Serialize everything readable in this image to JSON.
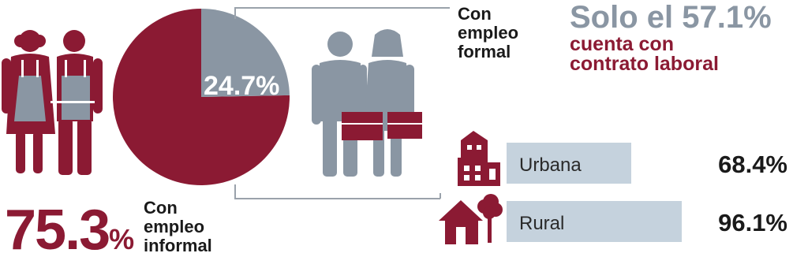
{
  "colors": {
    "informal": "#8b1a33",
    "formal": "#8a96a3",
    "bar": "#c5d2dd",
    "connector": "#9aa2ab"
  },
  "icons": {
    "left": "man-woman-with-aprons-icon",
    "right": "man-woman-with-briefcases-icon",
    "urban": "buildings-icon",
    "rural": "house-tree-icon"
  },
  "chart_data": [
    {
      "type": "pie",
      "categories": [
        "Con empleo informal",
        "Con empleo formal"
      ],
      "values": [
        75.3,
        24.7
      ],
      "labels": [
        "75.3%",
        "24.7%"
      ]
    },
    {
      "type": "bar",
      "orientation": "horizontal",
      "categories": [
        "Urbana",
        "Rural"
      ],
      "values": [
        68.4,
        96.1
      ],
      "labels": [
        "68.4%",
        "96.1%"
      ]
    }
  ],
  "informal": {
    "number": "75.3",
    "sign": "%",
    "label_lines": [
      "Con",
      "empleo",
      "informal"
    ]
  },
  "formal": {
    "pct_label": "24.7%",
    "label_lines": [
      "Con",
      "empleo",
      "formal"
    ]
  },
  "headline": {
    "title": "Solo el 57.1%",
    "sub_lines": [
      "cuenta con",
      "contrato laboral"
    ]
  }
}
